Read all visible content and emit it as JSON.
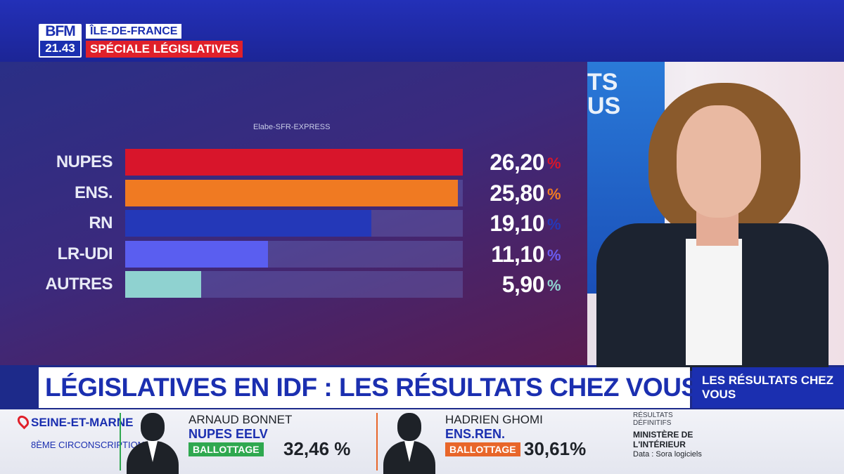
{
  "header": {
    "logo_text": "BFM",
    "time": "21.43",
    "region": "ÎLE-DE-FRANCE",
    "special": "SPÉCIALE LÉGISLATIVES"
  },
  "colors": {
    "brand_blue": "#1b2fb0",
    "brand_red": "#e0202a"
  },
  "chart_data": {
    "type": "bar",
    "orientation": "horizontal",
    "source": "Elabe-SFR-EXPRESS",
    "categories": [
      "NUPES",
      "ENS.",
      "RN",
      "LR-UDI",
      "AUTRES"
    ],
    "values": [
      26.2,
      25.8,
      19.1,
      11.1,
      5.9
    ],
    "value_labels": [
      "26,20",
      "25,80",
      "19,10",
      "11,10",
      "5,90"
    ],
    "unit": "%",
    "colors": [
      "#d8152b",
      "#f07a22",
      "#2438b8",
      "#5a5ef0",
      "#8fd2d0"
    ],
    "pct_colors": [
      "#d8152b",
      "#f07a22",
      "#2438b8",
      "#6a5cf0",
      "#8fd2d0"
    ],
    "xlim": [
      0,
      26.2
    ],
    "grid": false,
    "legend": "none"
  },
  "studio": {
    "screen_text": "TS\nUS"
  },
  "headline": "LÉGISLATIVES EN IDF : LES RÉSULTATS CHEZ VOUS",
  "side_box": "LES RÉSULTATS CHEZ VOUS",
  "ticker": {
    "location": "SEINE-ET-MARNE",
    "circonscription": "8ÈME CIRCONSCRIPTION",
    "candidates": [
      {
        "name": "ARNAUD BONNET",
        "party": "NUPES EELV",
        "status": "BALLOTTAGE",
        "score": "32,46 %",
        "status_color": "#2fa84f",
        "accent": "#2fa84f"
      },
      {
        "name": "HADRIEN GHOMI",
        "party": "ENS.REN.",
        "status": "BALLOTTAGE",
        "score": "30,61%",
        "status_color": "#e8662a",
        "accent": "#e8662a"
      }
    ],
    "results_label": "RÉSULTATS DÉFINITIFS",
    "ministry": "MINISTÈRE DE L'INTÉRIEUR",
    "data_credit": "Data : Sora logiciels"
  }
}
